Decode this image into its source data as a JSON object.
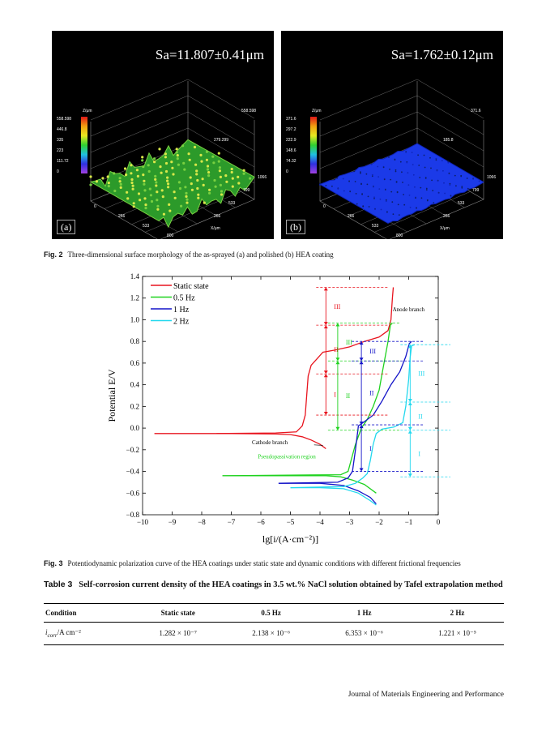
{
  "fig2": {
    "panel_a": {
      "sa": "Sa=11.807±0.41μm",
      "label": "(a)",
      "z_axis": "Z/μm",
      "x_axis": "X/μm",
      "scale_values": [
        "558.598",
        "446.8",
        "335",
        "223",
        "111.72",
        "0"
      ],
      "x_ticks": [
        "0",
        "266",
        "533",
        "800",
        "1066"
      ],
      "y_ticks": [
        "266",
        "533",
        "799",
        "1066"
      ],
      "top_values": [
        "558.598",
        "279.299"
      ]
    },
    "panel_b": {
      "sa": "Sa=1.762±0.12μm",
      "label": "(b)",
      "z_axis": "Z/μm",
      "x_axis": "X/μm",
      "scale_values": [
        "371.6",
        "297.2",
        "222.9",
        "148.6",
        "74.32",
        "0"
      ],
      "x_ticks": [
        "0",
        "266",
        "533",
        "800",
        "1066"
      ],
      "y_ticks": [
        "266",
        "533",
        "799",
        "1066"
      ],
      "top_values": [
        "371.6",
        "185.8"
      ]
    },
    "caption_num": "Fig. 2",
    "caption": "Three-dimensional surface morphology of the as-sprayed (a) and polished (b) HEA coating"
  },
  "fig3": {
    "caption_num": "Fig. 3",
    "caption": "Potentiodynamic polarization curve of the HEA coatings under static state and dynamic conditions with different frictional frequencies",
    "colors": {
      "static": "#e8141e",
      "hz05": "#1fd21f",
      "hz1": "#1414c8",
      "hz2": "#22d8ee"
    },
    "annotations": {
      "anode_branch": "Anode branch",
      "cathode_branch": "Cathode branch",
      "pseudopassivation": "Pseudopassivation region"
    }
  },
  "chart_data": {
    "type": "line",
    "title": "",
    "xlabel": "lg[i/(A·cm⁻²)]",
    "ylabel": "Potential E/V",
    "xlim": [
      -10,
      0
    ],
    "ylim": [
      -0.8,
      1.4
    ],
    "x_ticks": [
      "−10",
      "−9",
      "−8",
      "−7",
      "−6",
      "−5",
      "−4",
      "−3",
      "−2",
      "−1",
      "0"
    ],
    "y_ticks": [
      "−0.8",
      "−0.6",
      "−0.4",
      "−0.2",
      "0.0",
      "0.2",
      "0.4",
      "0.6",
      "0.8",
      "1.0",
      "1.2",
      "1.4"
    ],
    "legend_position": "top-left",
    "series": [
      {
        "name": "Static state",
        "color": "#e8141e",
        "cathodic": [
          [
            -9.6,
            -0.05
          ],
          [
            -7,
            -0.05
          ],
          [
            -5.5,
            -0.055
          ],
          [
            -5,
            -0.06
          ],
          [
            -4.6,
            -0.08
          ],
          [
            -4.3,
            -0.11
          ],
          [
            -4,
            -0.15
          ],
          [
            -3.8,
            -0.19
          ]
        ],
        "anodic": [
          [
            -7.5,
            -0.05
          ],
          [
            -5.5,
            -0.045
          ],
          [
            -4.8,
            -0.035
          ],
          [
            -4.6,
            0.02
          ],
          [
            -4.5,
            0.12
          ],
          [
            -4.45,
            0.3
          ],
          [
            -4.4,
            0.48
          ],
          [
            -4.3,
            0.58
          ],
          [
            -4.1,
            0.64
          ],
          [
            -3.9,
            0.7
          ],
          [
            -3.5,
            0.72
          ],
          [
            -3,
            0.75
          ],
          [
            -2.5,
            0.8
          ],
          [
            -2,
            0.84
          ],
          [
            -1.7,
            0.9
          ],
          [
            -1.6,
            1.0
          ],
          [
            -1.55,
            1.2
          ],
          [
            -1.52,
            1.3
          ]
        ]
      },
      {
        "name": "0.5 Hz",
        "color": "#1fd21f",
        "cathodic": [
          [
            -7.3,
            -0.44
          ],
          [
            -5,
            -0.44
          ],
          [
            -3.8,
            -0.44
          ],
          [
            -3.3,
            -0.45
          ],
          [
            -2.9,
            -0.48
          ],
          [
            -2.5,
            -0.52
          ],
          [
            -2.1,
            -0.6
          ]
        ],
        "anodic": [
          [
            -7.3,
            -0.44
          ],
          [
            -3.3,
            -0.43
          ],
          [
            -3.05,
            -0.4
          ],
          [
            -2.95,
            -0.3
          ],
          [
            -2.8,
            -0.15
          ],
          [
            -2.6,
            0.0
          ],
          [
            -2.4,
            0.08
          ],
          [
            -2.2,
            0.2
          ],
          [
            -2,
            0.35
          ],
          [
            -1.9,
            0.5
          ],
          [
            -1.8,
            0.65
          ],
          [
            -1.7,
            0.8
          ],
          [
            -1.62,
            0.95
          ],
          [
            -1.55,
            0.97
          ]
        ]
      },
      {
        "name": "1 Hz",
        "color": "#1414c8",
        "cathodic": [
          [
            -5.4,
            -0.51
          ],
          [
            -4,
            -0.51
          ],
          [
            -3.2,
            -0.53
          ],
          [
            -2.7,
            -0.58
          ],
          [
            -2.3,
            -0.64
          ],
          [
            -2.1,
            -0.7
          ]
        ],
        "anodic": [
          [
            -5.4,
            -0.51
          ],
          [
            -3.4,
            -0.5
          ],
          [
            -3.05,
            -0.46
          ],
          [
            -2.9,
            -0.4
          ],
          [
            -2.8,
            -0.2
          ],
          [
            -2.7,
            0.02
          ],
          [
            -2.5,
            0.06
          ],
          [
            -2.2,
            0.12
          ],
          [
            -1.9,
            0.25
          ],
          [
            -1.6,
            0.4
          ],
          [
            -1.3,
            0.52
          ],
          [
            -1.1,
            0.66
          ],
          [
            -0.98,
            0.78
          ],
          [
            -0.9,
            0.8
          ]
        ]
      },
      {
        "name": "2 Hz",
        "color": "#22d8ee",
        "cathodic": [
          [
            -5,
            -0.55
          ],
          [
            -4,
            -0.55
          ],
          [
            -3.2,
            -0.56
          ],
          [
            -2.7,
            -0.6
          ],
          [
            -2.3,
            -0.67
          ],
          [
            -2.1,
            -0.71
          ]
        ],
        "anodic": [
          [
            -5,
            -0.55
          ],
          [
            -3.2,
            -0.54
          ],
          [
            -2.8,
            -0.51
          ],
          [
            -2.55,
            -0.46
          ],
          [
            -2.4,
            -0.42
          ],
          [
            -2.3,
            -0.3
          ],
          [
            -2.2,
            -0.15
          ],
          [
            -2.1,
            -0.05
          ],
          [
            -1.9,
            -0.01
          ],
          [
            -1.5,
            0.01
          ],
          [
            -1.2,
            0.05
          ],
          [
            -1.1,
            0.2
          ],
          [
            -1,
            0.45
          ],
          [
            -0.95,
            0.65
          ],
          [
            -0.9,
            0.76
          ],
          [
            -0.8,
            0.77
          ]
        ]
      }
    ],
    "regions": [
      {
        "series": "Static state",
        "color": "#e8141e",
        "level_x": -3.8,
        "bounds": [
          0.12,
          0.5,
          0.95,
          1.3
        ],
        "labels": [
          "I",
          "II",
          "III"
        ]
      },
      {
        "series": "0.5 Hz",
        "color": "#1fd21f",
        "level_x": -3.4,
        "bounds": [
          -0.02,
          0.62,
          0.97
        ],
        "labels": [
          "II",
          "III"
        ]
      },
      {
        "series": "1 Hz",
        "color": "#1414c8",
        "level_x": -2.6,
        "bounds": [
          -0.4,
          0.03,
          0.62,
          0.8
        ],
        "labels": [
          "I",
          "II",
          "III"
        ]
      },
      {
        "series": "2 Hz",
        "color": "#22d8ee",
        "level_x": -0.95,
        "bounds": [
          -0.45,
          -0.02,
          0.24,
          0.77
        ],
        "labels": [
          "I",
          "II",
          "III"
        ]
      }
    ]
  },
  "table3": {
    "label": "Table 3",
    "title": "Self-corrosion current density of the HEA coatings in 3.5 wt.% NaCl solution obtained by Tafel extrapolation method",
    "headers": [
      "Condition",
      "Static state",
      "0.5 Hz",
      "1 Hz",
      "2 Hz"
    ],
    "row": [
      "i_corr/A cm⁻²",
      "1.282 × 10⁻⁷",
      "2.138 × 10⁻⁶",
      "6.353 × 10⁻⁶",
      "1.221 × 10⁻⁵"
    ]
  },
  "footer": {
    "journal": "Journal of Materials Engineering and Performance"
  }
}
